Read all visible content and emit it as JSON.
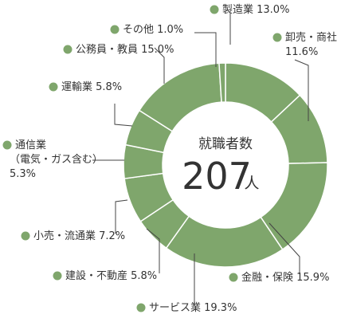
{
  "chart_data": {
    "type": "pie",
    "style": "donut",
    "center": {
      "title": "就職者数",
      "value": "207",
      "unit": "人"
    },
    "color": "#7fa66c",
    "marker_color": "#7fa66c",
    "slices": [
      {
        "label": "製造業",
        "value": 13.0,
        "display": "製造業 13.0%"
      },
      {
        "label": "卸売・商社",
        "value": 11.6,
        "display": [
          "卸売・商社",
          "11.6%"
        ]
      },
      {
        "label": "金融・保険",
        "value": 15.9,
        "display": "金融・保険 15.9%"
      },
      {
        "label": "サービス業",
        "value": 19.3,
        "display": "サービス業 19.3%"
      },
      {
        "label": "建設・不動産",
        "value": 5.8,
        "display": "建設・不動産 5.8%"
      },
      {
        "label": "小売・流通業",
        "value": 7.2,
        "display": "小売・流通業 7.2%"
      },
      {
        "label": "通信業（電気・ガス含む）",
        "value": 5.3,
        "display": [
          "通信業",
          "（電気・ガス含む）",
          "5.3%"
        ]
      },
      {
        "label": "運輸業",
        "value": 5.8,
        "display": "運輸業 5.8%"
      },
      {
        "label": "公務員・教員",
        "value": 15.0,
        "display": "公務員・教員 15.0%"
      },
      {
        "label": "その他",
        "value": 1.0,
        "display": "その他 1.0%"
      }
    ]
  }
}
